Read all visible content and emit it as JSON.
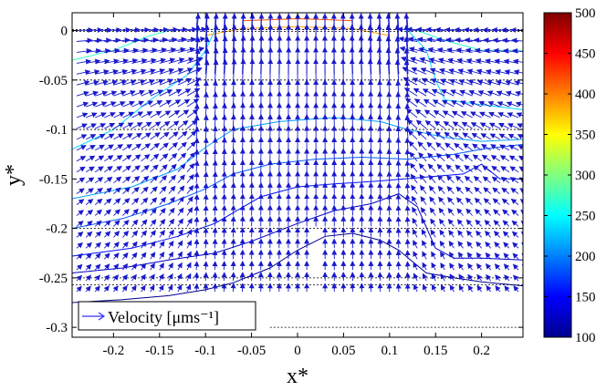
{
  "chart_data": {
    "type": "quiver",
    "xlabel": "x*",
    "ylabel": "y*",
    "xlim": [
      -0.245,
      0.245
    ],
    "ylim": [
      -0.31,
      0.018
    ],
    "x_ticks": [
      {
        "value": -0.2,
        "label": "-0.2"
      },
      {
        "value": -0.15,
        "label": "-0.15"
      },
      {
        "value": -0.1,
        "label": "-0.1"
      },
      {
        "value": -0.05,
        "label": "-0.05"
      },
      {
        "value": 0,
        "label": "0"
      },
      {
        "value": 0.05,
        "label": "0.05"
      },
      {
        "value": 0.1,
        "label": "0.1"
      },
      {
        "value": 0.15,
        "label": "0.15"
      },
      {
        "value": 0.2,
        "label": "0.2"
      }
    ],
    "y_ticks": [
      {
        "value": 0,
        "label": "0"
      },
      {
        "value": -0.05,
        "label": "-0.05"
      },
      {
        "value": -0.1,
        "label": "-0.1"
      },
      {
        "value": -0.15,
        "label": "-0.15"
      },
      {
        "value": -0.2,
        "label": "-0.2"
      },
      {
        "value": -0.25,
        "label": "-0.25"
      },
      {
        "value": -0.3,
        "label": "-0.3"
      }
    ],
    "legend": {
      "label": "Velocity [μms⁻¹]",
      "placement": "bottom-left",
      "arrow_color": "#3333ff"
    },
    "colorbar": {
      "range": [
        100,
        500
      ],
      "ticks": [
        {
          "value": 500,
          "label": "500"
        },
        {
          "value": 450,
          "label": "450"
        },
        {
          "value": 400,
          "label": "400"
        },
        {
          "value": 350,
          "label": "350"
        },
        {
          "value": 300,
          "label": "300"
        },
        {
          "value": 250,
          "label": "250"
        },
        {
          "value": 200,
          "label": "200"
        },
        {
          "value": 150,
          "label": "150"
        },
        {
          "value": 100,
          "label": "100"
        }
      ],
      "colormap": "jet"
    },
    "reference_lines_y": [
      0.001,
      -0.001,
      -0.05,
      -0.1,
      -0.2,
      -0.25,
      -0.257,
      -0.3
    ],
    "inlet": {
      "x_center": 0.01,
      "half_width": 0.12
    },
    "arrow_color": "#1a1acc",
    "contours": [
      {
        "level": 120,
        "color": "#00008f",
        "points": [
          [
            -0.245,
            -0.275
          ],
          [
            -0.19,
            -0.272
          ],
          [
            -0.14,
            -0.268
          ],
          [
            -0.1,
            -0.262
          ],
          [
            -0.07,
            -0.255
          ],
          [
            -0.03,
            -0.24
          ],
          [
            0.0,
            -0.222
          ],
          [
            0.03,
            -0.208
          ],
          [
            0.06,
            -0.205
          ],
          [
            0.09,
            -0.212
          ],
          [
            0.11,
            -0.222
          ],
          [
            0.14,
            -0.245
          ],
          [
            0.17,
            -0.25
          ],
          [
            0.2,
            -0.254
          ],
          [
            0.245,
            -0.258
          ]
        ]
      },
      {
        "level": 140,
        "color": "#0000c8",
        "points": [
          [
            -0.245,
            -0.245
          ],
          [
            -0.19,
            -0.24
          ],
          [
            -0.14,
            -0.232
          ],
          [
            -0.09,
            -0.225
          ],
          [
            -0.05,
            -0.213
          ],
          [
            0.0,
            -0.195
          ],
          [
            0.04,
            -0.182
          ],
          [
            0.08,
            -0.175
          ],
          [
            0.11,
            -0.165
          ],
          [
            0.13,
            -0.178
          ],
          [
            0.15,
            -0.22
          ],
          [
            0.17,
            -0.23
          ],
          [
            0.2,
            -0.23
          ],
          [
            0.245,
            -0.232
          ]
        ]
      },
      {
        "level": 160,
        "color": "#0010ff",
        "points": [
          [
            -0.245,
            -0.228
          ],
          [
            -0.18,
            -0.22
          ],
          [
            -0.13,
            -0.208
          ],
          [
            -0.09,
            -0.195
          ],
          [
            -0.04,
            -0.168
          ],
          [
            0.0,
            -0.158
          ],
          [
            0.04,
            -0.155
          ],
          [
            0.09,
            -0.152
          ],
          [
            0.14,
            -0.148
          ],
          [
            0.18,
            -0.145
          ],
          [
            0.2,
            -0.135
          ],
          [
            0.22,
            -0.15
          ],
          [
            0.245,
            -0.15
          ]
        ]
      },
      {
        "level": 180,
        "color": "#005aff",
        "points": [
          [
            -0.245,
            -0.2
          ],
          [
            -0.19,
            -0.19
          ],
          [
            -0.14,
            -0.175
          ],
          [
            -0.1,
            -0.16
          ],
          [
            -0.07,
            -0.145
          ],
          [
            -0.03,
            -0.135
          ],
          [
            0.02,
            -0.13
          ],
          [
            0.07,
            -0.128
          ],
          [
            0.12,
            -0.13
          ],
          [
            0.17,
            -0.125
          ],
          [
            0.2,
            -0.12
          ],
          [
            0.245,
            -0.115
          ]
        ]
      },
      {
        "level": 200,
        "color": "#00a0ff",
        "points": [
          [
            -0.245,
            -0.17
          ],
          [
            -0.18,
            -0.158
          ],
          [
            -0.13,
            -0.14
          ],
          [
            -0.1,
            -0.118
          ],
          [
            -0.07,
            -0.1
          ],
          [
            -0.02,
            -0.092
          ],
          [
            0.04,
            -0.088
          ],
          [
            0.09,
            -0.092
          ],
          [
            0.12,
            -0.1
          ],
          [
            0.16,
            -0.108
          ],
          [
            0.2,
            -0.112
          ],
          [
            0.245,
            -0.11
          ]
        ]
      },
      {
        "level": 230,
        "color": "#00d8ff",
        "points": [
          [
            -0.245,
            -0.12
          ],
          [
            -0.2,
            -0.1
          ],
          [
            -0.16,
            -0.07
          ],
          [
            -0.12,
            -0.045
          ],
          [
            -0.1,
            -0.02
          ],
          [
            -0.09,
            0.0
          ]
        ]
      },
      {
        "level": 230,
        "color": "#00d8ff",
        "points": [
          [
            0.12,
            0.0
          ],
          [
            0.14,
            -0.02
          ],
          [
            0.15,
            -0.05
          ],
          [
            0.16,
            -0.07
          ],
          [
            0.2,
            -0.075
          ],
          [
            0.245,
            -0.08
          ]
        ]
      },
      {
        "level": 260,
        "color": "#30ffc8",
        "points": [
          [
            -0.245,
            -0.03
          ],
          [
            -0.2,
            -0.02
          ],
          [
            -0.16,
            -0.005
          ],
          [
            -0.14,
            0.0
          ]
        ]
      },
      {
        "level": 260,
        "color": "#30ffc8",
        "points": [
          [
            0.13,
            0.0
          ],
          [
            0.16,
            -0.01
          ],
          [
            0.2,
            -0.02
          ],
          [
            0.245,
            -0.02
          ]
        ]
      },
      {
        "level": 380,
        "color": "#ffa000",
        "points": [
          [
            -0.1,
            -0.005
          ],
          [
            -0.06,
            0.002
          ],
          [
            0.0,
            0.004
          ],
          [
            0.06,
            0.002
          ],
          [
            0.1,
            -0.005
          ]
        ]
      },
      {
        "level": 420,
        "color": "#ff5000",
        "points": [
          [
            -0.06,
            0.01
          ],
          [
            0.0,
            0.012
          ],
          [
            0.06,
            0.01
          ]
        ]
      }
    ]
  }
}
